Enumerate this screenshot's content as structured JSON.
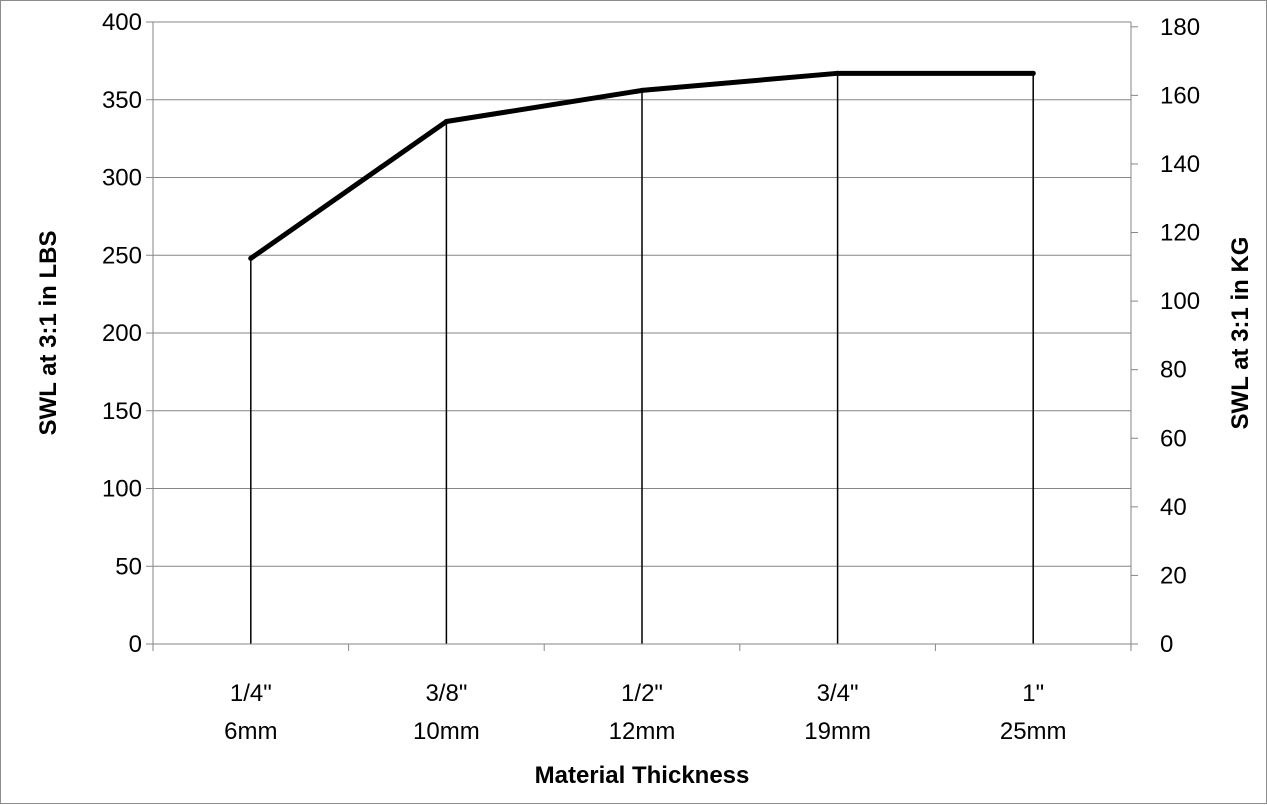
{
  "chart_data": {
    "type": "line",
    "title": "",
    "xlabel": "Material Thickness",
    "ylabel": "SWL at 3:1 in LBS",
    "y2label": "SWL at 3:1 in KG",
    "categories": [
      [
        "1/4\"",
        "6mm"
      ],
      [
        "3/8\"",
        "10mm"
      ],
      [
        "1/2\"",
        "12mm"
      ],
      [
        "3/4\"",
        "19mm"
      ],
      [
        "1\"",
        "25mm"
      ]
    ],
    "series": [
      {
        "values": [
          248,
          336,
          356,
          367,
          367
        ],
        "color": "#000000",
        "drop_lines": true
      }
    ],
    "ylim": [
      0,
      400
    ],
    "yticks": [
      0,
      50,
      100,
      150,
      200,
      250,
      300,
      350,
      400
    ],
    "y2lim": [
      0,
      181.4
    ],
    "y2ticks": [
      0,
      20,
      40,
      60,
      80,
      100,
      120,
      140,
      160,
      180
    ],
    "grid": true,
    "legend": "none"
  }
}
